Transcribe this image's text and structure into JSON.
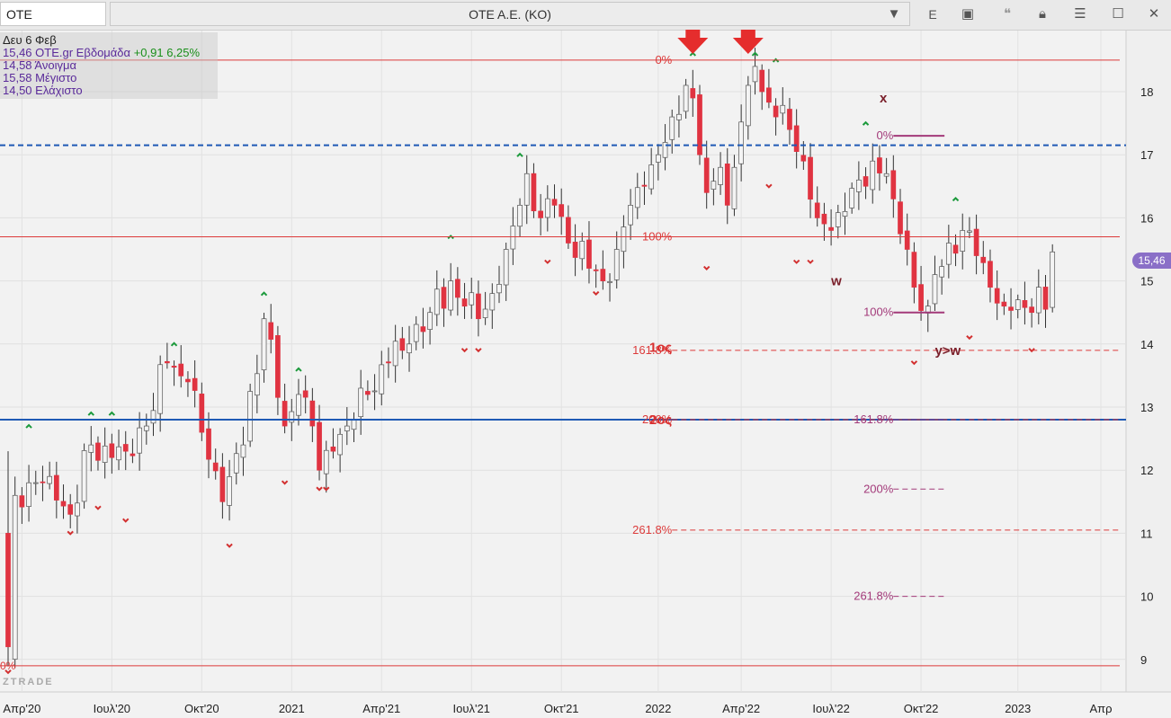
{
  "toolbar": {
    "symbol": "OTE",
    "title": "OTE A.E. (KO)",
    "dropdown_icon": "chevron-down-icon",
    "e_label": "E",
    "icons": [
      "frame-icon",
      "comment-icon",
      "lock-icon",
      "menu-icon",
      "maximize-icon",
      "close-icon"
    ]
  },
  "info": {
    "date": "Δευ 6 Φεβ",
    "close": "15,46",
    "source": "OTE.gr Εβδομάδα",
    "change": "+0,91 6,25%",
    "open_label": "14,58 Άνοιγμα",
    "high_label": "15,58 Μέγιστο",
    "low_label": "14,50 Ελάχιστο"
  },
  "watermark": "ZTRADE",
  "price_badge": "15,46",
  "chart_data": {
    "type": "candlestick",
    "timeframe": "weekly",
    "start_date": "2020-03-16",
    "up_color": "#f4f4f4",
    "down_color": "#e03341",
    "y_range": [
      8.6,
      18.9
    ],
    "y_ticks": [
      9,
      10,
      11,
      12,
      13,
      14,
      15,
      16,
      17,
      18
    ],
    "x_ticks": [
      {
        "label": "Απρ'20",
        "week": 2
      },
      {
        "label": "Ιουλ'20",
        "week": 15
      },
      {
        "label": "Οκτ'20",
        "week": 28
      },
      {
        "label": "2021",
        "week": 41
      },
      {
        "label": "Απρ'21",
        "week": 54
      },
      {
        "label": "Ιουλ'21",
        "week": 67
      },
      {
        "label": "Οκτ'21",
        "week": 80
      },
      {
        "label": "2022",
        "week": 94
      },
      {
        "label": "Απρ'22",
        "week": 106
      },
      {
        "label": "Ιουλ'22",
        "week": 119
      },
      {
        "label": "Οκτ'22",
        "week": 132
      },
      {
        "label": "2023",
        "week": 146
      },
      {
        "label": "Απρ",
        "week": 158
      }
    ],
    "close_anchors": [
      {
        "week": 0,
        "price": 9.0
      },
      {
        "week": 1,
        "price": 11.6
      },
      {
        "week": 3,
        "price": 11.8
      },
      {
        "week": 6,
        "price": 11.9
      },
      {
        "week": 9,
        "price": 11.3
      },
      {
        "week": 12,
        "price": 12.4
      },
      {
        "week": 15,
        "price": 12.2
      },
      {
        "week": 17,
        "price": 12.3
      },
      {
        "week": 20,
        "price": 12.7
      },
      {
        "week": 23,
        "price": 13.7
      },
      {
        "week": 26,
        "price": 13.4
      },
      {
        "week": 28,
        "price": 12.6
      },
      {
        "week": 31,
        "price": 11.5
      },
      {
        "week": 34,
        "price": 12.4
      },
      {
        "week": 37,
        "price": 14.4
      },
      {
        "week": 40,
        "price": 12.7
      },
      {
        "week": 42,
        "price": 13.2
      },
      {
        "week": 44,
        "price": 12.7
      },
      {
        "week": 45,
        "price": 12.0
      },
      {
        "week": 47,
        "price": 12.3
      },
      {
        "week": 49,
        "price": 12.7
      },
      {
        "week": 52,
        "price": 13.2
      },
      {
        "week": 55,
        "price": 13.7
      },
      {
        "week": 58,
        "price": 14.0
      },
      {
        "week": 61,
        "price": 14.5
      },
      {
        "week": 64,
        "price": 15.0
      },
      {
        "week": 66,
        "price": 14.6
      },
      {
        "week": 68,
        "price": 14.4
      },
      {
        "week": 70,
        "price": 14.8
      },
      {
        "week": 72,
        "price": 15.5
      },
      {
        "week": 74,
        "price": 16.2
      },
      {
        "week": 75,
        "price": 16.7
      },
      {
        "week": 77,
        "price": 16.0
      },
      {
        "week": 79,
        "price": 16.2
      },
      {
        "week": 81,
        "price": 15.6
      },
      {
        "week": 84,
        "price": 15.2
      },
      {
        "week": 86,
        "price": 15.0
      },
      {
        "week": 88,
        "price": 15.5
      },
      {
        "week": 90,
        "price": 16.2
      },
      {
        "week": 92,
        "price": 16.5
      },
      {
        "week": 94,
        "price": 17.0
      },
      {
        "week": 96,
        "price": 17.6
      },
      {
        "week": 98,
        "price": 18.1
      },
      {
        "week": 99,
        "price": 17.9
      },
      {
        "week": 100,
        "price": 17.0
      },
      {
        "week": 101,
        "price": 16.4
      },
      {
        "week": 103,
        "price": 16.8
      },
      {
        "week": 104,
        "price": 16.2
      },
      {
        "week": 105,
        "price": 16.8
      },
      {
        "week": 107,
        "price": 18.1
      },
      {
        "week": 108,
        "price": 18.4
      },
      {
        "week": 109,
        "price": 18.0
      },
      {
        "week": 111,
        "price": 17.6
      },
      {
        "week": 113,
        "price": 17.4
      },
      {
        "week": 115,
        "price": 16.9
      },
      {
        "week": 117,
        "price": 16.0
      },
      {
        "week": 119,
        "price": 15.8
      },
      {
        "week": 121,
        "price": 16.1
      },
      {
        "week": 123,
        "price": 16.6
      },
      {
        "week": 125,
        "price": 16.9
      },
      {
        "week": 127,
        "price": 16.7
      },
      {
        "week": 128,
        "price": 16.3
      },
      {
        "week": 130,
        "price": 15.5
      },
      {
        "week": 131,
        "price": 14.9
      },
      {
        "week": 133,
        "price": 14.6
      },
      {
        "week": 134,
        "price": 15.1
      },
      {
        "week": 136,
        "price": 15.6
      },
      {
        "week": 138,
        "price": 15.8
      },
      {
        "week": 140,
        "price": 15.4
      },
      {
        "week": 142,
        "price": 14.9
      },
      {
        "week": 144,
        "price": 14.6
      },
      {
        "week": 146,
        "price": 14.7
      },
      {
        "week": 148,
        "price": 14.5
      },
      {
        "week": 149,
        "price": 14.9
      },
      {
        "week": 150,
        "price": 14.55
      },
      {
        "week": 151,
        "price": 15.46
      }
    ],
    "last_candle": {
      "week": 151,
      "open": 14.58,
      "high": 15.58,
      "low": 14.5,
      "close": 15.46
    },
    "pivots": [
      {
        "week": 0,
        "price": 8.9,
        "dir": "low"
      },
      {
        "week": 3,
        "price": 12.6,
        "dir": "high"
      },
      {
        "week": 9,
        "price": 11.1,
        "dir": "low"
      },
      {
        "week": 12,
        "price": 12.8,
        "dir": "high"
      },
      {
        "week": 13,
        "price": 11.5,
        "dir": "low"
      },
      {
        "week": 15,
        "price": 12.8,
        "dir": "high"
      },
      {
        "week": 17,
        "price": 11.3,
        "dir": "low"
      },
      {
        "week": 24,
        "price": 13.9,
        "dir": "high"
      },
      {
        "week": 32,
        "price": 10.9,
        "dir": "low"
      },
      {
        "week": 37,
        "price": 14.7,
        "dir": "high"
      },
      {
        "week": 40,
        "price": 11.9,
        "dir": "low"
      },
      {
        "week": 42,
        "price": 13.5,
        "dir": "high"
      },
      {
        "week": 45,
        "price": 11.8,
        "dir": "low"
      },
      {
        "week": 46,
        "price": 11.8,
        "dir": "low"
      },
      {
        "week": 64,
        "price": 15.6,
        "dir": "high"
      },
      {
        "week": 66,
        "price": 14.0,
        "dir": "low"
      },
      {
        "week": 68,
        "price": 14.0,
        "dir": "low"
      },
      {
        "week": 74,
        "price": 16.9,
        "dir": "high"
      },
      {
        "week": 78,
        "price": 15.4,
        "dir": "low"
      },
      {
        "week": 85,
        "price": 14.9,
        "dir": "low"
      },
      {
        "week": 99,
        "price": 18.5,
        "dir": "high"
      },
      {
        "week": 101,
        "price": 15.3,
        "dir": "low"
      },
      {
        "week": 108,
        "price": 18.5,
        "dir": "high"
      },
      {
        "week": 111,
        "price": 18.4,
        "dir": "high"
      },
      {
        "week": 110,
        "price": 16.6,
        "dir": "low"
      },
      {
        "week": 114,
        "price": 15.4,
        "dir": "low"
      },
      {
        "week": 116,
        "price": 15.4,
        "dir": "low"
      },
      {
        "week": 124,
        "price": 17.4,
        "dir": "high"
      },
      {
        "week": 131,
        "price": 13.8,
        "dir": "low"
      },
      {
        "week": 137,
        "price": 16.2,
        "dir": "high"
      },
      {
        "week": 139,
        "price": 14.2,
        "dir": "low"
      },
      {
        "week": 148,
        "price": 14.0,
        "dir": "low"
      }
    ],
    "annotations": {
      "top_arrows": [
        {
          "week": 99
        },
        {
          "week": 107
        }
      ],
      "fib_main": {
        "color": "#dc3a3a",
        "levels": [
          {
            "label": "0%",
            "price": 18.5,
            "line": "solid"
          },
          {
            "label": "100%",
            "price": 15.7,
            "line": "solid"
          },
          {
            "label": "161.8%",
            "price": 13.9,
            "line": "dashed"
          },
          {
            "label": "200%",
            "price": 12.8,
            "line": "dashed"
          },
          {
            "label": "261.8%",
            "price": 11.05,
            "line": "dashed"
          }
        ],
        "low_line": {
          "label": "0%",
          "price": 8.9
        }
      },
      "fib_secondary": {
        "color": "#a33a7a",
        "levels": [
          {
            "label": "0%",
            "price": 17.3
          },
          {
            "label": "100%",
            "price": 14.5
          },
          {
            "label": "161.8%",
            "price": 12.8
          },
          {
            "label": "200%",
            "price": 11.7
          },
          {
            "label": "261.8%",
            "price": 10.0
          }
        ]
      },
      "hlines": [
        {
          "price": 17.15,
          "color": "#1f5ab5",
          "style": "dashed"
        },
        {
          "price": 12.8,
          "color": "#1f5ab5",
          "style": "solid"
        }
      ],
      "labels": [
        {
          "text": "1ος",
          "week": 96,
          "price": 13.95,
          "color": "#d93030"
        },
        {
          "text": "2ος",
          "week": 96,
          "price": 12.8,
          "color": "#d93030"
        },
        {
          "text": "x",
          "week": 126,
          "price": 17.9,
          "color": "#7a1f2a"
        },
        {
          "text": "w",
          "week": 119,
          "price": 15.0,
          "color": "#7a1f2a"
        },
        {
          "text": "y>w",
          "week": 134,
          "price": 13.9,
          "color": "#7a1f2a"
        }
      ]
    }
  }
}
